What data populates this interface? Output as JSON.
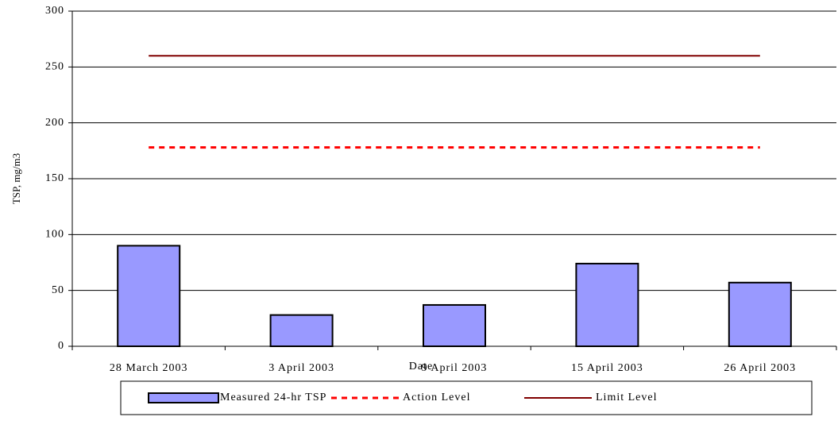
{
  "chart_data": {
    "type": "bar",
    "x_label": "Date",
    "y_label": "TSP, mg/m3",
    "categories": [
      "28 March 2003",
      "3 April 2003",
      "9 April 2003",
      "15 April 2003",
      "26 April 2003"
    ],
    "series": [
      {
        "name": "Measured 24-hr TSP",
        "type": "bar",
        "color": "#9999ff",
        "values": [
          90,
          28,
          37,
          74,
          57
        ]
      },
      {
        "name": "Action Level",
        "type": "line",
        "dashed": true,
        "color": "#ff0000",
        "values": [
          178,
          178,
          178,
          178,
          178
        ]
      },
      {
        "name": "Limit Level",
        "type": "line",
        "dashed": false,
        "color": "#800000",
        "values": [
          260,
          260,
          260,
          260,
          260
        ]
      }
    ],
    "ylim": [
      0,
      300
    ],
    "yticks": [
      0,
      50,
      100,
      150,
      200,
      250,
      300
    ],
    "grid": true,
    "legend": "bottom"
  }
}
